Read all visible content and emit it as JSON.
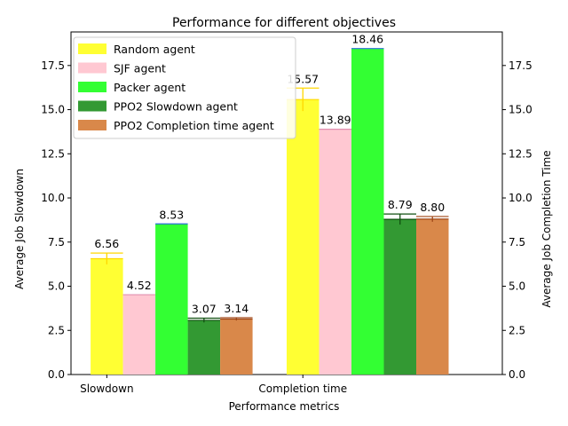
{
  "chart_data": {
    "type": "bar",
    "title": "Performance for different objectives",
    "xlabel": "Performance metrics",
    "ylabel": "Average Job Slowdown",
    "ylabel_right": "Average Job Completion Time",
    "categories": [
      "Slowdown",
      "Completion time"
    ],
    "ylim": [
      0,
      19.4
    ],
    "yticks": [
      0.0,
      2.5,
      5.0,
      7.5,
      10.0,
      12.5,
      15.0,
      17.5
    ],
    "ytick_labels": [
      "0.0",
      "2.5",
      "5.0",
      "7.5",
      "10.0",
      "12.5",
      "15.0",
      "17.5"
    ],
    "legend_position": "top-left",
    "series": [
      {
        "name": "Random agent",
        "color": "#ffff33",
        "edge": "#ffd700",
        "values": [
          6.56,
          15.57
        ],
        "labels": [
          "6.56",
          "15.57"
        ],
        "err": [
          0.32,
          0.65
        ]
      },
      {
        "name": "SJF agent",
        "color": "#ffc8d2",
        "edge": "#e090b0",
        "values": [
          4.52,
          13.89
        ],
        "labels": [
          "4.52",
          "13.89"
        ],
        "err": [
          0.0,
          0.0
        ]
      },
      {
        "name": "Packer agent",
        "color": "#33ff33",
        "edge": "#2a6fd6",
        "values": [
          8.53,
          18.46
        ],
        "labels": [
          "8.53",
          "18.46"
        ],
        "err": [
          0.0,
          0.0
        ]
      },
      {
        "name": "PPO2 Slowdown agent",
        "color": "#339933",
        "edge": "#105010",
        "values": [
          3.07,
          8.79
        ],
        "labels": [
          "3.07",
          "8.79"
        ],
        "err": [
          0.12,
          0.3
        ]
      },
      {
        "name": "PPO2 Completion time agent",
        "color": "#d9884a",
        "edge": "#a04818",
        "values": [
          3.14,
          8.8
        ],
        "labels": [
          "3.14",
          "8.80"
        ],
        "err": [
          0.08,
          0.15
        ]
      }
    ]
  }
}
